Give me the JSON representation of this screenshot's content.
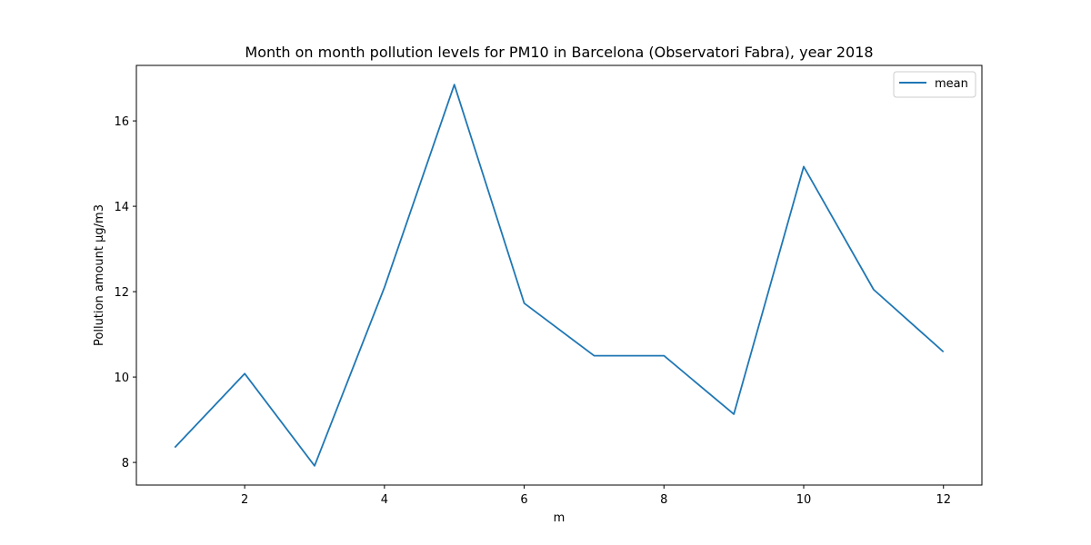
{
  "chart_data": {
    "type": "line",
    "title": "Month on month pollution levels for PM10 in Barcelona (Observatori Fabra), year 2018",
    "xlabel": "m",
    "ylabel": "Pollution amount µg/m3",
    "x": [
      1,
      2,
      3,
      4,
      5,
      6,
      7,
      8,
      9,
      10,
      11,
      12
    ],
    "series": [
      {
        "name": "mean",
        "color": "#1f77b4",
        "values": [
          8.35,
          10.08,
          7.92,
          12.1,
          16.85,
          11.73,
          10.5,
          10.5,
          9.13,
          14.93,
          12.05,
          10.59
        ]
      }
    ],
    "xticks": [
      "2",
      "4",
      "6",
      "8",
      "10",
      "12"
    ],
    "yticks": [
      "8",
      "10",
      "12",
      "14",
      "16"
    ],
    "xlim": [
      0.45,
      12.55
    ],
    "ylim": [
      7.47,
      17.3
    ],
    "grid": false,
    "legend": "top-right"
  }
}
